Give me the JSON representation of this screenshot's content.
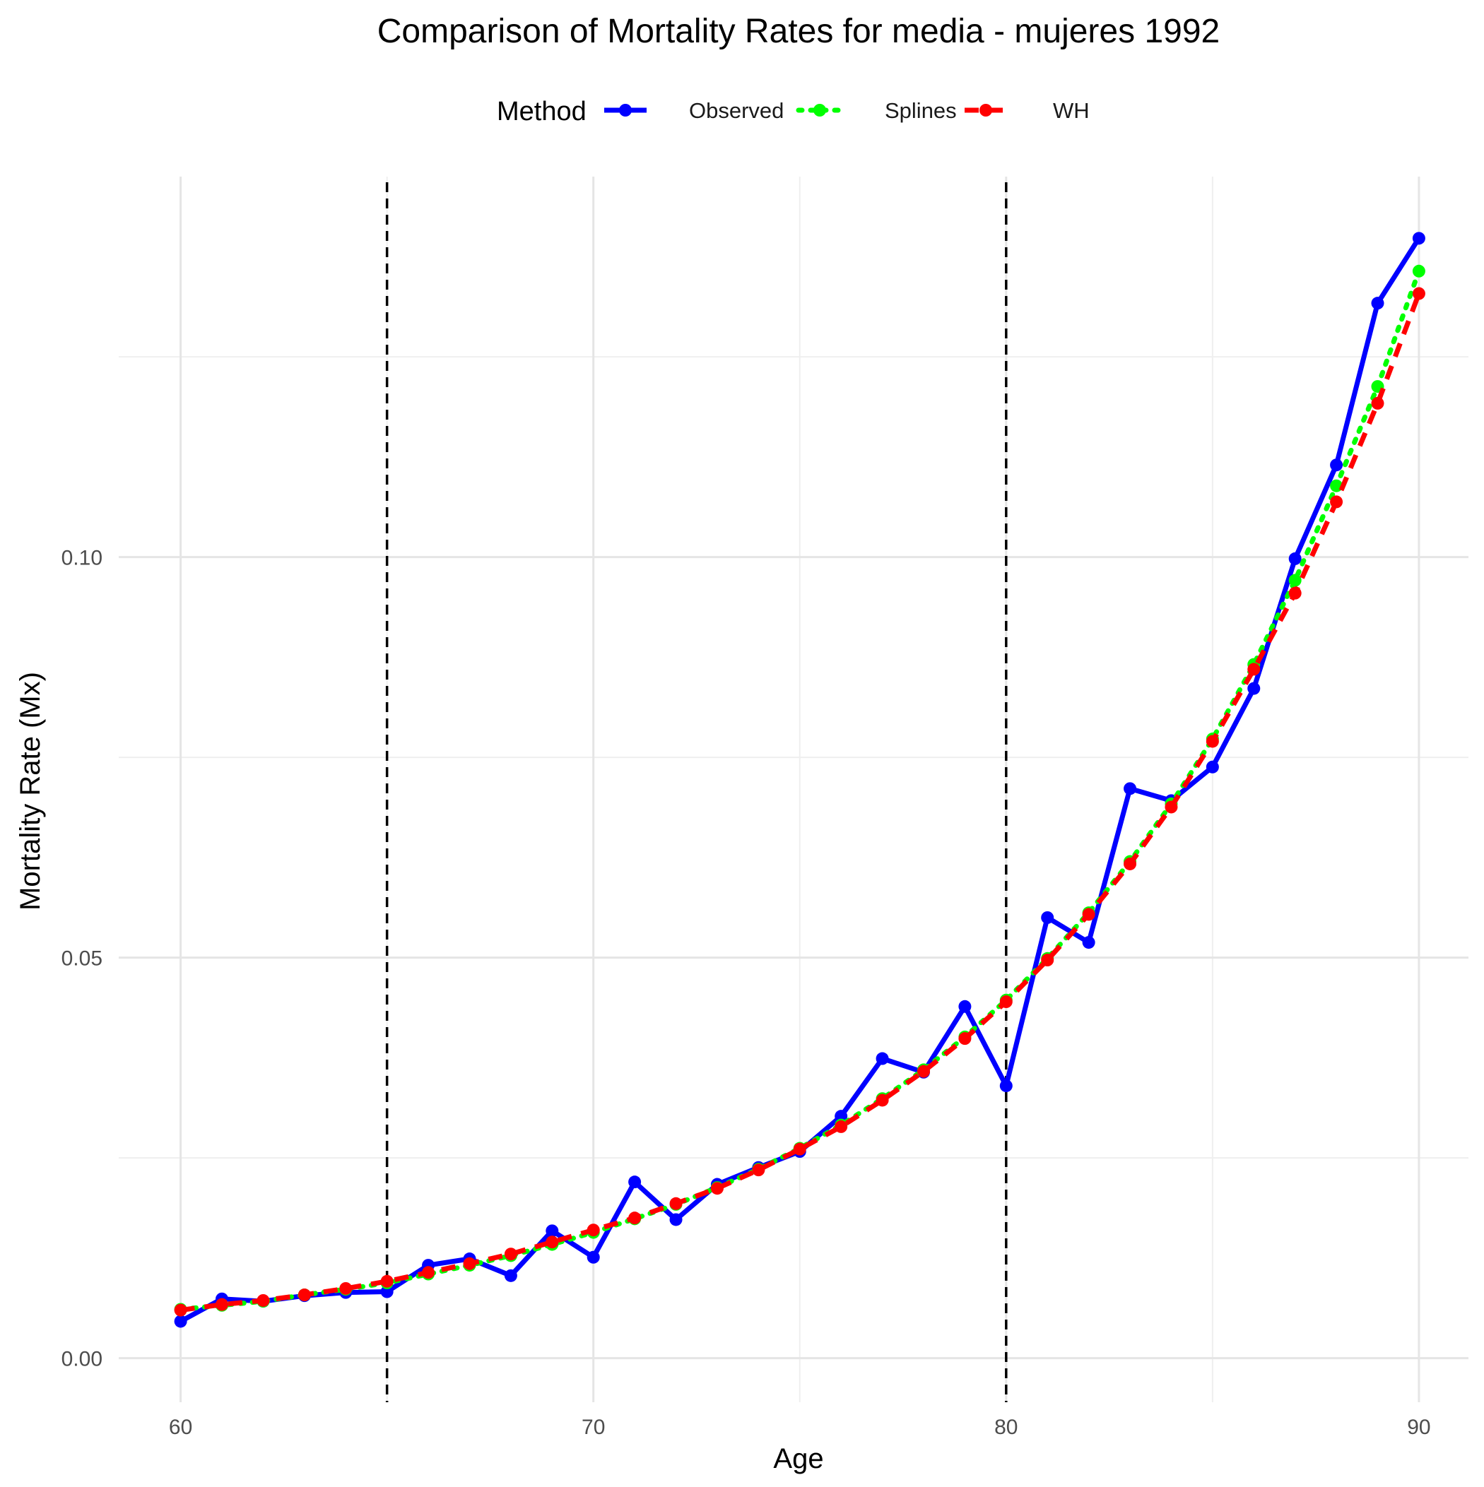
{
  "chart_data": {
    "type": "line",
    "title": "Comparison of Mortality Rates for media - mujeres 1992",
    "xlabel": "Age",
    "ylabel": "Mortality Rate (Mx)",
    "xlim": [
      58.5,
      91.2
    ],
    "ylim": [
      -0.0055,
      0.1475
    ],
    "x_ticks": [
      60,
      70,
      80,
      90
    ],
    "x_tick_labels": [
      "60",
      "70",
      "80",
      "90"
    ],
    "y_ticks": [
      0.0,
      0.05,
      0.1
    ],
    "y_tick_labels": [
      "0.00",
      "0.05",
      "0.10"
    ],
    "grid": true,
    "vertical_reference_lines": [
      65,
      80
    ],
    "legend": {
      "title": "Method",
      "position": "top",
      "entries": [
        "Observed",
        "Splines",
        "WH"
      ]
    },
    "x": [
      60,
      61,
      62,
      63,
      64,
      65,
      66,
      67,
      68,
      69,
      70,
      71,
      72,
      73,
      74,
      75,
      76,
      77,
      78,
      79,
      80,
      81,
      82,
      83,
      84,
      85,
      86,
      87,
      88,
      89,
      90
    ],
    "series": [
      {
        "name": "Observed",
        "color": "#0000ff",
        "line_style": "solid",
        "values": [
          0.0046,
          0.0074,
          0.0071,
          0.0078,
          0.0082,
          0.0083,
          0.0116,
          0.0124,
          0.0103,
          0.0159,
          0.0126,
          0.022,
          0.0173,
          0.0217,
          0.0238,
          0.0258,
          0.0302,
          0.0374,
          0.0357,
          0.0439,
          0.034,
          0.055,
          0.0519,
          0.0711,
          0.0696,
          0.0738,
          0.0836,
          0.0998,
          0.1115,
          0.1317,
          0.1398
        ]
      },
      {
        "name": "Splines",
        "color": "#00ff00",
        "line_style": "dotted",
        "values": [
          0.0061,
          0.0066,
          0.0071,
          0.0079,
          0.0086,
          0.0094,
          0.0105,
          0.0116,
          0.0128,
          0.0142,
          0.0157,
          0.0174,
          0.0192,
          0.0213,
          0.0236,
          0.0262,
          0.0291,
          0.0324,
          0.036,
          0.0401,
          0.0447,
          0.0499,
          0.0556,
          0.062,
          0.0692,
          0.0773,
          0.0866,
          0.0971,
          0.1089,
          0.1213,
          0.1357
        ]
      },
      {
        "name": "WH",
        "color": "#ff0000",
        "line_style": "dashed",
        "values": [
          0.006,
          0.0067,
          0.0072,
          0.0079,
          0.0087,
          0.0096,
          0.0107,
          0.0118,
          0.013,
          0.0145,
          0.016,
          0.0175,
          0.0193,
          0.0212,
          0.0235,
          0.0261,
          0.0289,
          0.0322,
          0.0358,
          0.0399,
          0.0445,
          0.0497,
          0.0554,
          0.0617,
          0.0688,
          0.077,
          0.086,
          0.0955,
          0.1069,
          0.1192,
          0.1329
        ]
      }
    ]
  }
}
